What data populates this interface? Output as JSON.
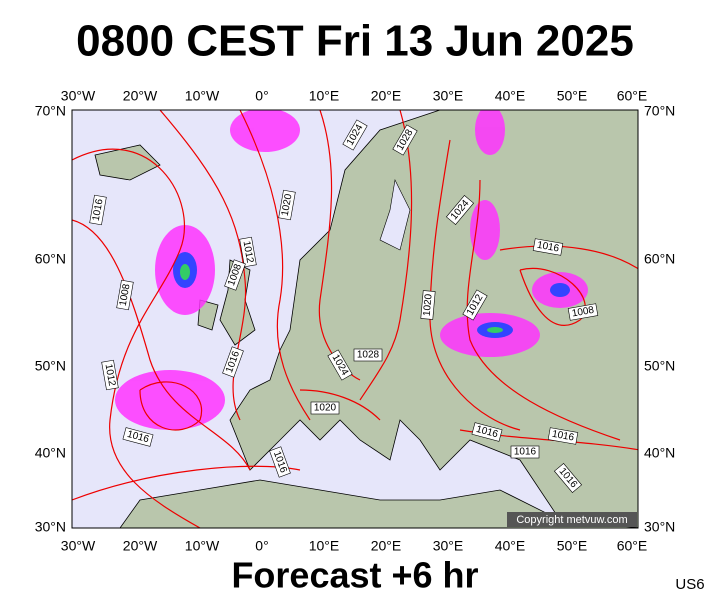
{
  "header": {
    "title": "0800 CEST Fri 13 Jun 2025"
  },
  "footer": {
    "forecast": "Forecast +6 hr",
    "code": "US6"
  },
  "map": {
    "longitudes": [
      "30°W",
      "20°W",
      "10°W",
      "0°",
      "10°E",
      "20°E",
      "30°E",
      "40°E",
      "50°E",
      "60°E"
    ],
    "latitudes": [
      "70°N",
      "60°N",
      "50°N",
      "40°N",
      "30°N"
    ],
    "isobar_labels": [
      "1024",
      "1028",
      "1016",
      "1020",
      "1024",
      "1012",
      "1016",
      "1008",
      "1008",
      "1020",
      "1012",
      "1008",
      "1028",
      "1024",
      "1016",
      "1012",
      "1020",
      "1016",
      "1016",
      "1016",
      "1016",
      "1016",
      "1016"
    ],
    "copyright": "Copyright metvuw.com"
  }
}
